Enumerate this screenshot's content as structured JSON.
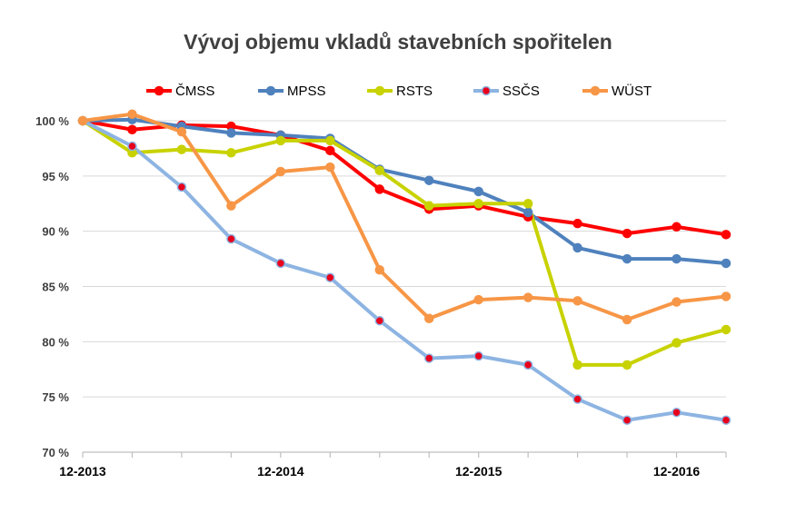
{
  "chart_data": {
    "type": "line",
    "title": "Vývoj objemu vkladů stavebních spořitelen",
    "xlabel": "",
    "ylabel": "",
    "x_tick_labels": [
      "12-2013",
      "12-2014",
      "12-2015",
      "12-2016"
    ],
    "y_tick_labels": [
      "70 %",
      "75 %",
      "80 %",
      "85 %",
      "90 %",
      "95 %",
      "100 %"
    ],
    "ylim": [
      70,
      100
    ],
    "y_ticks": [
      70,
      75,
      80,
      85,
      90,
      95,
      100
    ],
    "x_count": 14,
    "grid": "horizontal",
    "legend_position": "top",
    "series": [
      {
        "name": "ČMSS",
        "color": "#ff0000",
        "marker_fill": "#ff0000",
        "values": [
          100.0,
          99.2,
          99.6,
          99.5,
          98.7,
          97.3,
          93.8,
          92.0,
          92.3,
          91.3,
          90.7,
          89.8,
          90.4,
          89.7
        ]
      },
      {
        "name": "MPSS",
        "color": "#4f81bd",
        "marker_fill": "#4f81bd",
        "values": [
          100.0,
          100.1,
          99.5,
          98.9,
          98.7,
          98.4,
          95.6,
          94.6,
          93.6,
          91.7,
          88.5,
          87.5,
          87.5,
          87.1
        ]
      },
      {
        "name": "RSTS",
        "color": "#c8d200",
        "marker_fill": "#c8d200",
        "values": [
          100.0,
          97.1,
          97.4,
          97.1,
          98.2,
          98.2,
          95.5,
          92.3,
          92.5,
          92.5,
          77.9,
          77.9,
          79.9,
          81.1
        ]
      },
      {
        "name": "SSČS",
        "color": "#8db4e2",
        "marker_fill": "#e8001c",
        "values": [
          100.0,
          97.7,
          94.0,
          89.3,
          87.1,
          85.8,
          81.9,
          78.5,
          78.7,
          77.9,
          74.8,
          72.9,
          73.6,
          72.9
        ]
      },
      {
        "name": "WÜST",
        "color": "#f79646",
        "marker_fill": "#f79646",
        "values": [
          100.0,
          100.6,
          99.0,
          92.3,
          95.4,
          95.8,
          86.5,
          82.1,
          83.8,
          84.0,
          83.7,
          82.0,
          83.6,
          84.1
        ]
      }
    ]
  }
}
